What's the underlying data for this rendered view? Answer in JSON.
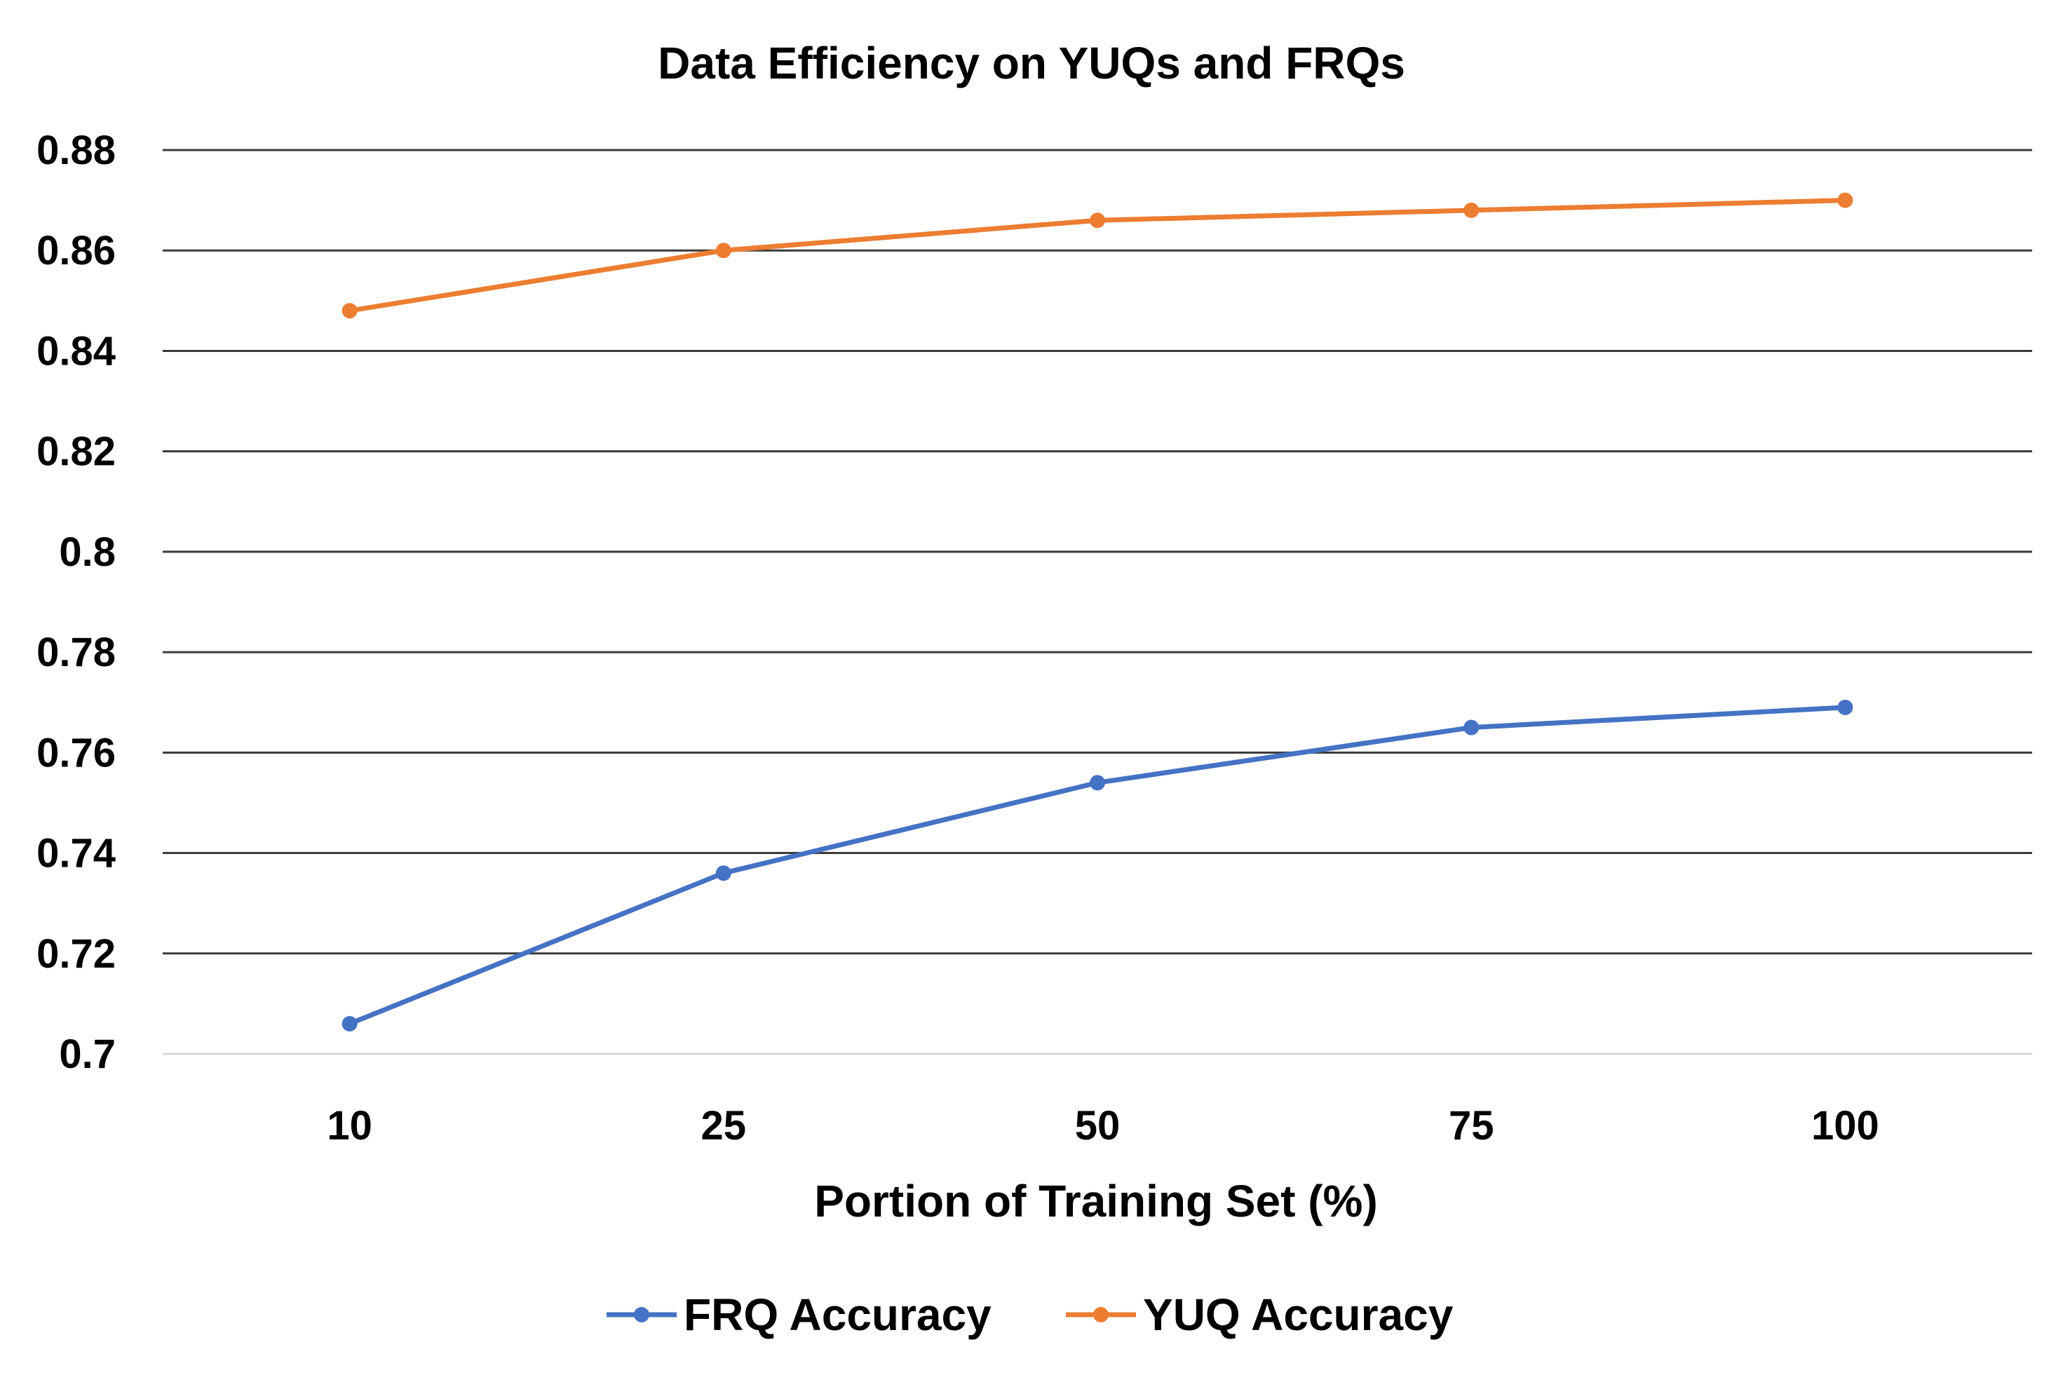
{
  "chart_data": {
    "type": "line",
    "title": "Data Efficiency on YUQs and FRQs",
    "xlabel": "Portion of Training Set (%)",
    "ylabel": "",
    "categories": [
      "10",
      "25",
      "50",
      "75",
      "100"
    ],
    "ylim": [
      0.7,
      0.88
    ],
    "yticks": [
      "0.7",
      "0.72",
      "0.74",
      "0.76",
      "0.78",
      "0.8",
      "0.82",
      "0.84",
      "0.86",
      "0.88"
    ],
    "grid": true,
    "legend_position": "bottom",
    "series": [
      {
        "name": "FRQ Accuracy",
        "color": "#4472C4",
        "values": [
          0.706,
          0.736,
          0.754,
          0.765,
          0.769
        ]
      },
      {
        "name": "YUQ Accuracy",
        "color": "#ED7D31",
        "values": [
          0.848,
          0.86,
          0.866,
          0.868,
          0.87
        ]
      }
    ]
  }
}
